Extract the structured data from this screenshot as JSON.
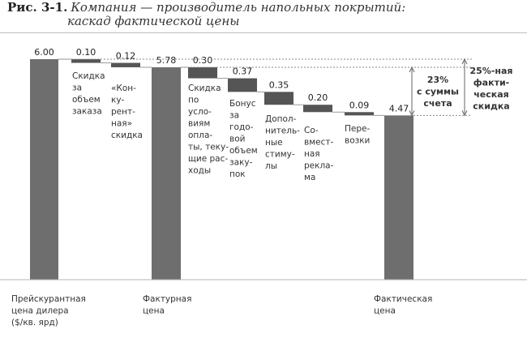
{
  "figure": {
    "number": "Рис. 3-1.",
    "title_line1": "Компания — производитель напольных покрытий:",
    "title_line2": "каскад фактической цены"
  },
  "chart_data": {
    "type": "bar",
    "subtype": "waterfall",
    "ylim": [
      0,
      6.0
    ],
    "colors": {
      "total": "#6e6e6e",
      "decrement": "#555555"
    },
    "bars": [
      {
        "kind": "total",
        "value": 6.0,
        "label": "6.00",
        "category": [
          "Прейскурантная",
          "цена дилера",
          "($/кв. ярд)"
        ]
      },
      {
        "kind": "decrement",
        "value": 0.1,
        "label": "0.10",
        "category": [
          "Скидка",
          "за",
          "объем",
          "заказа"
        ]
      },
      {
        "kind": "decrement",
        "value": 0.12,
        "label": "0.12",
        "category": [
          "«Кон-",
          "ку-",
          "рент-",
          "ная»",
          "скидка"
        ]
      },
      {
        "kind": "total",
        "value": 5.78,
        "label": "5.78",
        "category": [
          "Фактурная",
          "цена"
        ]
      },
      {
        "kind": "decrement",
        "value": 0.3,
        "label": "0.30",
        "category": [
          "Скидка",
          "по",
          "усло-",
          "виям",
          "опла-",
          "ты, теку-",
          "щие рас-",
          "ходы"
        ]
      },
      {
        "kind": "decrement",
        "value": 0.37,
        "label": "0.37",
        "category": [
          "Бонус",
          "за",
          "годо-",
          "вой",
          "объем",
          "заку-",
          "пок"
        ]
      },
      {
        "kind": "decrement",
        "value": 0.35,
        "label": "0.35",
        "category": [
          "Допол-",
          "нитель-",
          "ные",
          "стиму-",
          "лы"
        ]
      },
      {
        "kind": "decrement",
        "value": 0.2,
        "label": "0.20",
        "category": [
          "Со-",
          "вмест-",
          "ная",
          "рекла-",
          "ма"
        ]
      },
      {
        "kind": "decrement",
        "value": 0.09,
        "label": "0.09",
        "category": [
          "Пере-",
          "возки"
        ]
      },
      {
        "kind": "total",
        "value": 4.47,
        "label": "4.47",
        "category": [
          "Фактическая",
          "цена"
        ]
      }
    ],
    "annotations": [
      {
        "from": "Фактурная цена",
        "to": "Фактическая цена",
        "lines": [
          "23%",
          "с суммы",
          "счета"
        ]
      },
      {
        "from": "Прейскурантная цена дилера",
        "to": "Фактическая цена",
        "lines": [
          "25%-ная",
          "факти-",
          "ческая",
          "скидка"
        ]
      }
    ]
  }
}
